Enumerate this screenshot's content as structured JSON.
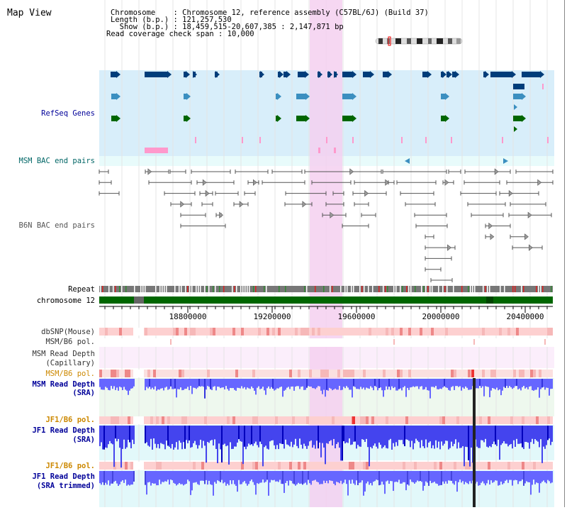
{
  "title": "Map View",
  "info": {
    "lines": [
      "Chromosome    : Chromosome 12, reference assembly (C57BL/6J) (Build 37)",
      "Length (b.p.) : 121,257,530",
      "  Show (b.p.) : 18,459,515-20,607,385 : 2,147,871 bp",
      "Read coverage check span : 10,000"
    ]
  },
  "tracks": {
    "refseq": "RefSeq Genes",
    "msm_bac": "MSM BAC end pairs",
    "b6n_bac": "B6N BAC end pairs",
    "repeat": "Repeat",
    "chromosome": "chromosome 12",
    "dbsnp": "dbSNP(Mouse)",
    "msm_b6_pol_1": "MSM/B6 pol.",
    "msm_depth_cap_1": "MSM Read Depth",
    "msm_depth_cap_2": "(Capillary)",
    "msm_b6_pol_2": "MSM/B6 pol.",
    "msm_depth_sra_1": "MSM Read Depth",
    "msm_depth_sra_2": "(SRA)",
    "jf1_b6_pol_1": "JF1/B6 pol.",
    "jf1_depth_sra_1": "JF1 Read Depth",
    "jf1_depth_sra_2": "(SRA)",
    "jf1_b6_pol_2": "JF1/B6 pol.",
    "jf1_depth_trim_1": "JF1 Read Depth",
    "jf1_depth_trim_2": "(SRA trimmed)"
  },
  "axis": {
    "ticks": [
      "18800000",
      "19200000",
      "19600000",
      "20000000",
      "20400000"
    ]
  },
  "colors": {
    "highlight": "#f5d0f0",
    "refseq_bg": "#d8eefa",
    "bac_bg": "#e8fbfb",
    "gene_dark": "#003d7a",
    "gene_mid": "#3b8fc0",
    "gene_green": "#006600",
    "pink_mark": "#ff99cc",
    "chrom_green": "#006600",
    "depth_blue": "#6666ff",
    "depth_dark": "#0000cc",
    "label_blue": "#000099",
    "label_teal": "#006666",
    "label_orange": "#cc8800"
  }
}
